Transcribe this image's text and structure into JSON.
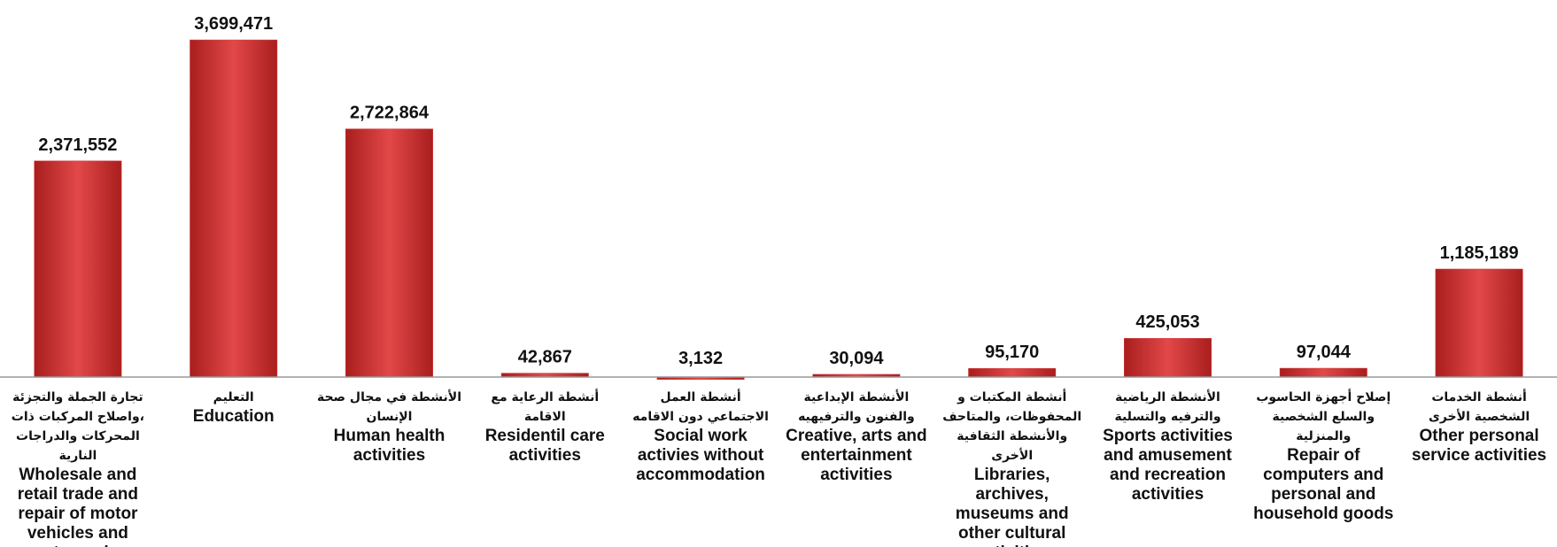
{
  "chart_data": {
    "type": "bar",
    "categories": [
      "Wholesale and retail trade and repair of motor vehicles and motorcycles",
      "Education",
      "Human health activities",
      "Residentil care activities",
      "Social work activies without accommodation",
      "Creative, arts and entertainment activities",
      "Libraries, archives, museums and other cultural activities",
      "Sports activities and amusement and recreation activities",
      "Repair of computers and personal and household goods",
      "Other personal service activities"
    ],
    "categories_ar": [
      "تجارة الجملة والتجزئة ،واصلاح المركبات ذات المحركات والدراجات النارية",
      "التعليم",
      "الأنشطة في مجال صحة الإنسان",
      "أنشطة الرعاية مع الاقامة",
      "أنشطة العمل الاجتماعي دون الاقامه",
      "الأنشطة الإبداعية والفنون والترفيهيه",
      "أنشطة المكتبات و المحفوظات، والمتاحف والأنشطة الثقافية الأخرى",
      "الأنشطة الرياضية والترفيه والتسلية",
      "إصلاح أجهزة الحاسوب والسلع الشخصية والمنزلية",
      "أنشطة الخدمات الشخصية الأخرى"
    ],
    "values": [
      2371552,
      3699471,
      2722864,
      42867,
      3132,
      30094,
      95170,
      425053,
      97044,
      1185189
    ],
    "value_labels": [
      "2,371,552",
      "3,699,471",
      "2,722,864",
      "42,867",
      "3,132",
      "30,094",
      "95,170",
      "425,053",
      "97,044",
      "1,185,189"
    ],
    "color": "#d93a3a",
    "ylim": [
      0,
      3700000
    ]
  }
}
